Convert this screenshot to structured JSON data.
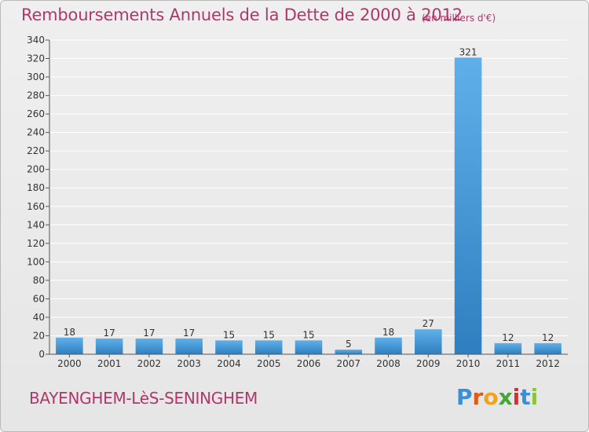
{
  "header": {
    "title": "Remboursements Annuels de la Dette de 2000 à 2012",
    "unit": "(en milliers d'€)"
  },
  "footer": {
    "town": "BAYENGHEM-LèS-SENINGHEM",
    "logo_letters": [
      "P",
      "r",
      "o",
      "x",
      "i",
      "t",
      "i"
    ],
    "logo_colors": [
      "#3a8fd8",
      "#e05a1a",
      "#f3a21b",
      "#45a43a",
      "#d92e2e",
      "#3a8fd8",
      "#8bc33d"
    ]
  },
  "colors": {
    "accent": "#b0376a",
    "bar_top": "#5fb0ea",
    "bar_bottom": "#2f7fc0",
    "grid": "#ffffff"
  },
  "chart_data": {
    "type": "bar",
    "categories": [
      "2000",
      "2001",
      "2002",
      "2003",
      "2004",
      "2005",
      "2006",
      "2007",
      "2008",
      "2009",
      "2010",
      "2011",
      "2012"
    ],
    "values": [
      18,
      17,
      17,
      17,
      15,
      15,
      15,
      5,
      18,
      27,
      321,
      12,
      12
    ],
    "title": "Remboursements Annuels de la Dette de 2000 à 2012",
    "xlabel": "",
    "ylabel": "",
    "ylim": [
      0,
      340
    ],
    "yticks": [
      0,
      20,
      40,
      60,
      80,
      100,
      120,
      140,
      160,
      180,
      200,
      220,
      240,
      260,
      280,
      300,
      320,
      340
    ],
    "grid": true,
    "legend": "none"
  }
}
